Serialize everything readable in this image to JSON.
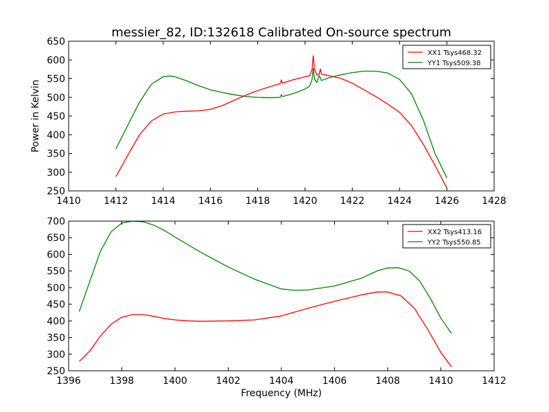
{
  "figure": {
    "title": "messier_82, ID:132618 Calibrated On-source spectrum",
    "ylabel": "Power in Kelvin",
    "xlabel": "Frequency (MHz)"
  },
  "chart_data": [
    {
      "type": "line",
      "title": "messier_82, ID:132618 Calibrated On-source spectrum",
      "xlabel": "",
      "ylabel": "Power in Kelvin",
      "xlim": [
        1410,
        1428
      ],
      "ylim": [
        250,
        650
      ],
      "xticks": [
        1410,
        1412,
        1414,
        1416,
        1418,
        1420,
        1422,
        1424,
        1426,
        1428
      ],
      "yticks": [
        250,
        300,
        350,
        400,
        450,
        500,
        550,
        600,
        650
      ],
      "grid": false,
      "legend_position": "top-right",
      "series": [
        {
          "name": "XX1 Tsys468.32",
          "color": "#ff0000",
          "points": [
            [
              1412.0,
              288
            ],
            [
              1412.5,
              345
            ],
            [
              1413.0,
              400
            ],
            [
              1413.5,
              437
            ],
            [
              1414.0,
              455
            ],
            [
              1414.5,
              461
            ],
            [
              1415.0,
              463
            ],
            [
              1415.5,
              464
            ],
            [
              1416.0,
              468
            ],
            [
              1416.5,
              478
            ],
            [
              1417.0,
              492
            ],
            [
              1417.5,
              506
            ],
            [
              1418.0,
              518
            ],
            [
              1418.5,
              528
            ],
            [
              1418.95,
              537
            ],
            [
              1419.0,
              546
            ],
            [
              1419.05,
              538
            ],
            [
              1419.5,
              547
            ],
            [
              1420.0,
              555
            ],
            [
              1420.2,
              558
            ],
            [
              1420.3,
              575
            ],
            [
              1420.35,
              612
            ],
            [
              1420.4,
              575
            ],
            [
              1420.5,
              560
            ],
            [
              1420.6,
              562
            ],
            [
              1420.65,
              576
            ],
            [
              1420.7,
              562
            ],
            [
              1421.0,
              558
            ],
            [
              1421.5,
              551
            ],
            [
              1422.0,
              538
            ],
            [
              1422.5,
              520
            ],
            [
              1423.0,
              502
            ],
            [
              1423.5,
              482
            ],
            [
              1424.0,
              460
            ],
            [
              1424.5,
              425
            ],
            [
              1425.0,
              375
            ],
            [
              1425.5,
              318
            ],
            [
              1426.0,
              258
            ]
          ]
        },
        {
          "name": "YY1 Tsys509.38",
          "color": "#008000",
          "points": [
            [
              1412.0,
              362
            ],
            [
              1412.5,
              425
            ],
            [
              1413.0,
              487
            ],
            [
              1413.5,
              535
            ],
            [
              1414.0,
              555
            ],
            [
              1414.3,
              557
            ],
            [
              1414.5,
              555
            ],
            [
              1415.0,
              544
            ],
            [
              1415.5,
              531
            ],
            [
              1416.0,
              520
            ],
            [
              1416.5,
              513
            ],
            [
              1417.0,
              507
            ],
            [
              1417.5,
              502
            ],
            [
              1418.0,
              500
            ],
            [
              1418.5,
              499
            ],
            [
              1418.95,
              500
            ],
            [
              1419.0,
              507
            ],
            [
              1419.05,
              502
            ],
            [
              1419.5,
              510
            ],
            [
              1420.0,
              522
            ],
            [
              1420.2,
              530
            ],
            [
              1420.3,
              548
            ],
            [
              1420.35,
              578
            ],
            [
              1420.4,
              548
            ],
            [
              1420.5,
              540
            ],
            [
              1420.6,
              558
            ],
            [
              1420.7,
              545
            ],
            [
              1421.0,
              552
            ],
            [
              1421.5,
              560
            ],
            [
              1422.0,
              566
            ],
            [
              1422.5,
              570
            ],
            [
              1423.0,
              570
            ],
            [
              1423.5,
              565
            ],
            [
              1424.0,
              548
            ],
            [
              1424.5,
              510
            ],
            [
              1425.0,
              440
            ],
            [
              1425.5,
              350
            ],
            [
              1426.0,
              285
            ]
          ]
        }
      ]
    },
    {
      "type": "line",
      "title": "",
      "xlabel": "Frequency (MHz)",
      "ylabel": "",
      "xlim": [
        1396,
        1412
      ],
      "ylim": [
        250,
        700
      ],
      "xticks": [
        1396,
        1398,
        1400,
        1402,
        1404,
        1406,
        1408,
        1410,
        1412
      ],
      "yticks": [
        250,
        300,
        350,
        400,
        450,
        500,
        550,
        600,
        650,
        700
      ],
      "grid": false,
      "legend_position": "top-right",
      "series": [
        {
          "name": "XX2 Tsys413.16",
          "color": "#ff0000",
          "points": [
            [
              1396.4,
              278
            ],
            [
              1396.8,
              310
            ],
            [
              1397.2,
              355
            ],
            [
              1397.6,
              390
            ],
            [
              1398.0,
              411
            ],
            [
              1398.4,
              419
            ],
            [
              1398.8,
              419
            ],
            [
              1399.2,
              414
            ],
            [
              1399.6,
              407
            ],
            [
              1400.0,
              403
            ],
            [
              1400.5,
              400
            ],
            [
              1401.0,
              399
            ],
            [
              1402.0,
              400
            ],
            [
              1403.0,
              403
            ],
            [
              1404.0,
              415
            ],
            [
              1405.0,
              438
            ],
            [
              1406.0,
              459
            ],
            [
              1407.0,
              478
            ],
            [
              1407.6,
              487
            ],
            [
              1408.0,
              487
            ],
            [
              1408.5,
              475
            ],
            [
              1409.0,
              438
            ],
            [
              1409.5,
              375
            ],
            [
              1410.0,
              305
            ],
            [
              1410.4,
              262
            ]
          ]
        },
        {
          "name": "YY2 Tsys550.85",
          "color": "#008000",
          "points": [
            [
              1396.4,
              428
            ],
            [
              1396.8,
              520
            ],
            [
              1397.2,
              610
            ],
            [
              1397.6,
              668
            ],
            [
              1398.0,
              694
            ],
            [
              1398.4,
              700
            ],
            [
              1398.8,
              698
            ],
            [
              1399.2,
              688
            ],
            [
              1399.6,
              672
            ],
            [
              1400.0,
              652
            ],
            [
              1401.0,
              605
            ],
            [
              1402.0,
              562
            ],
            [
              1403.0,
              525
            ],
            [
              1404.0,
              496
            ],
            [
              1404.5,
              492
            ],
            [
              1405.0,
              493
            ],
            [
              1406.0,
              505
            ],
            [
              1407.0,
              528
            ],
            [
              1407.6,
              550
            ],
            [
              1408.0,
              559
            ],
            [
              1408.4,
              560
            ],
            [
              1408.8,
              550
            ],
            [
              1409.2,
              520
            ],
            [
              1409.6,
              468
            ],
            [
              1410.0,
              408
            ],
            [
              1410.4,
              362
            ]
          ]
        }
      ]
    }
  ]
}
